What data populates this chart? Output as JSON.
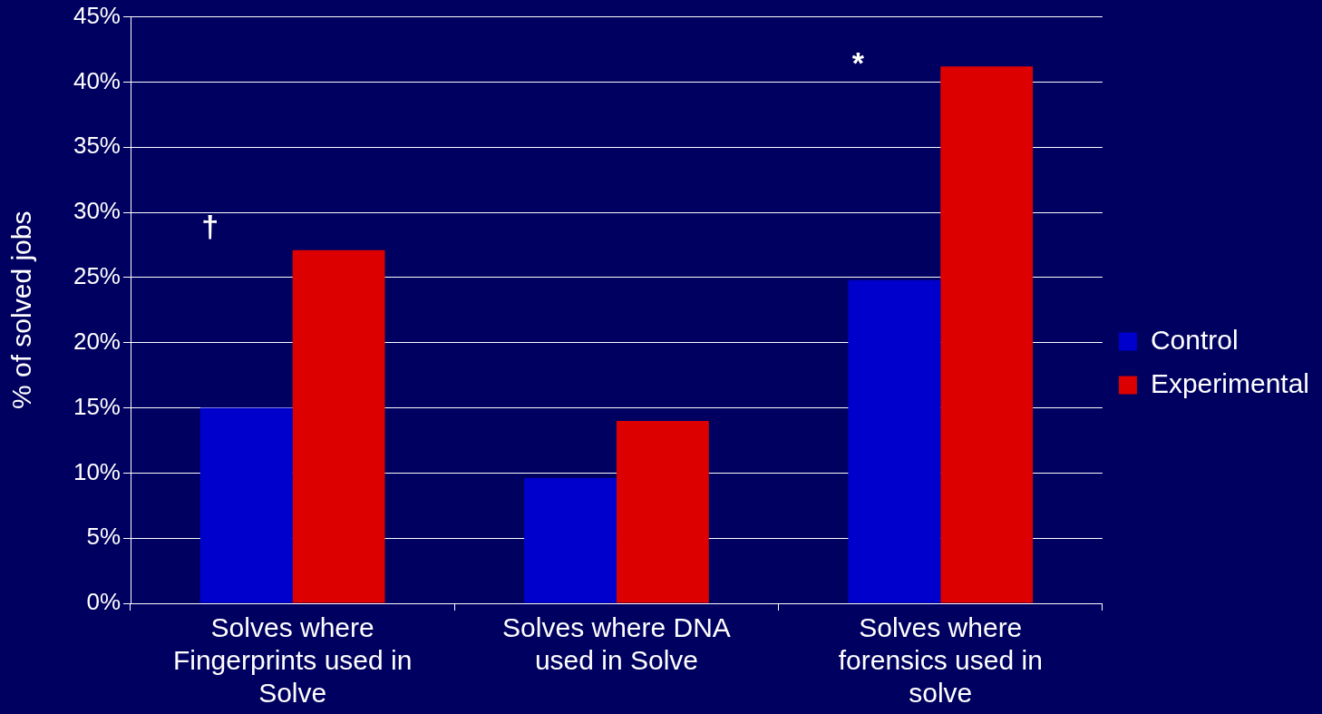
{
  "chart_data": {
    "type": "bar",
    "ylabel": "% of solved jobs",
    "categories": [
      "Solves where Fingerprints used in Solve",
      "Solves where DNA used in Solve",
      "Solves where forensics used in solve"
    ],
    "series": [
      {
        "name": "Control",
        "color": "#0000cc",
        "values": [
          15,
          9.6,
          24.8
        ]
      },
      {
        "name": "Experimental",
        "color": "#dd0000",
        "values": [
          27.1,
          14,
          41.2
        ]
      }
    ],
    "ylim": [
      0,
      45
    ],
    "yticks": [
      {
        "value": 0,
        "label": "0%"
      },
      {
        "value": 5,
        "label": "5%"
      },
      {
        "value": 10,
        "label": "10%"
      },
      {
        "value": 15,
        "label": "15%"
      },
      {
        "value": 20,
        "label": "20%"
      },
      {
        "value": 25,
        "label": "25%"
      },
      {
        "value": 30,
        "label": "30%"
      },
      {
        "value": 35,
        "label": "35%"
      },
      {
        "value": 40,
        "label": "40%"
      },
      {
        "value": 45,
        "label": "45%"
      }
    ],
    "grid": "y",
    "legend": "right",
    "annotations": [
      "†",
      "*"
    ]
  }
}
